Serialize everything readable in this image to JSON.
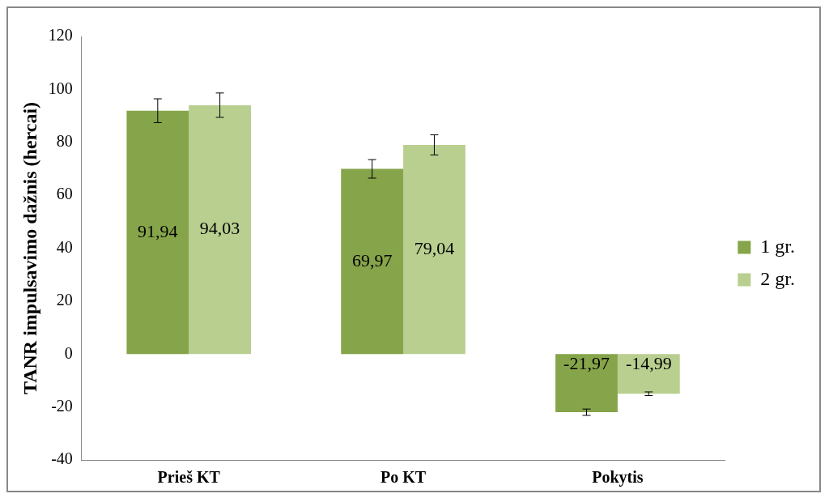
{
  "chart_data": {
    "type": "bar",
    "ylabel": "TANR impulsavimo dažnis (hercai)",
    "categories": [
      "Prieš KT",
      "Po KT",
      "Pokytis"
    ],
    "series": [
      {
        "name": "1 gr.",
        "color": "#86a44a",
        "values": [
          91.94,
          69.97,
          -21.97
        ],
        "errors": [
          4.5,
          3.5,
          1.2
        ],
        "value_labels": [
          "91,94",
          "69,97",
          "-21,97"
        ]
      },
      {
        "name": "2 gr.",
        "color": "#b9cf90",
        "values": [
          94.03,
          79.04,
          -14.99
        ],
        "errors": [
          4.6,
          3.8,
          0.7
        ],
        "value_labels": [
          "94,03",
          "79,04",
          "-14,99"
        ]
      }
    ],
    "ylim": [
      -40,
      120
    ],
    "yticks": [
      -40,
      -20,
      0,
      20,
      40,
      60,
      80,
      100,
      120
    ],
    "grid": false,
    "legend": "right"
  }
}
